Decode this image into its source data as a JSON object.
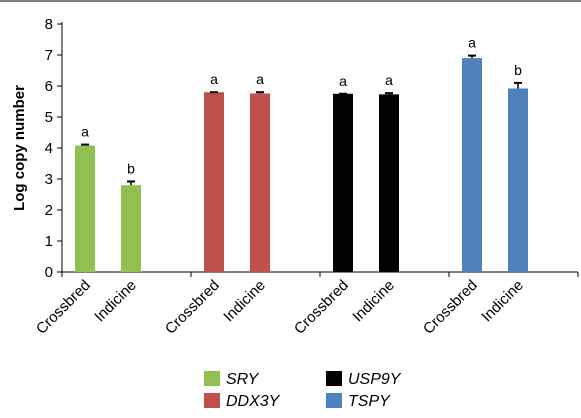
{
  "chart_data": {
    "type": "bar",
    "title": "",
    "xlabel": "",
    "ylabel": "Log copy number",
    "ylim": [
      0,
      8
    ],
    "yticks": [
      0,
      1,
      2,
      3,
      4,
      5,
      6,
      7,
      8
    ],
    "grid": false,
    "legend_position": "bottom-center",
    "groups": [
      {
        "name": "SRY",
        "color": "#92c050",
        "bars": [
          {
            "category": "Crossbred",
            "value": 4.08,
            "error": 0.03,
            "significance": "a"
          },
          {
            "category": "Indicine",
            "value": 2.8,
            "error": 0.12,
            "significance": "b"
          }
        ]
      },
      {
        "name": "DDX3Y",
        "color": "#c0504d",
        "bars": [
          {
            "category": "Crossbred",
            "value": 5.8,
            "error": 0.0,
            "significance": "a"
          },
          {
            "category": "Indicine",
            "value": 5.76,
            "error": 0.04,
            "significance": "a"
          }
        ]
      },
      {
        "name": "USP9Y",
        "color": "#000000",
        "bars": [
          {
            "category": "Crossbred",
            "value": 5.75,
            "error": 0.0,
            "significance": "a"
          },
          {
            "category": "Indicine",
            "value": 5.73,
            "error": 0.04,
            "significance": "a"
          }
        ]
      },
      {
        "name": "TSPY",
        "color": "#4f81bd",
        "bars": [
          {
            "category": "Crossbred",
            "value": 6.9,
            "error": 0.08,
            "significance": "a"
          },
          {
            "category": "Indicine",
            "value": 5.92,
            "error": 0.18,
            "significance": "b"
          }
        ]
      }
    ],
    "legend": [
      {
        "label": "SRY",
        "color": "#92c050"
      },
      {
        "label": "USP9Y",
        "color": "#000000"
      },
      {
        "label": "DDX3Y",
        "color": "#c0504d"
      },
      {
        "label": "TSPY",
        "color": "#4f81bd"
      }
    ]
  }
}
